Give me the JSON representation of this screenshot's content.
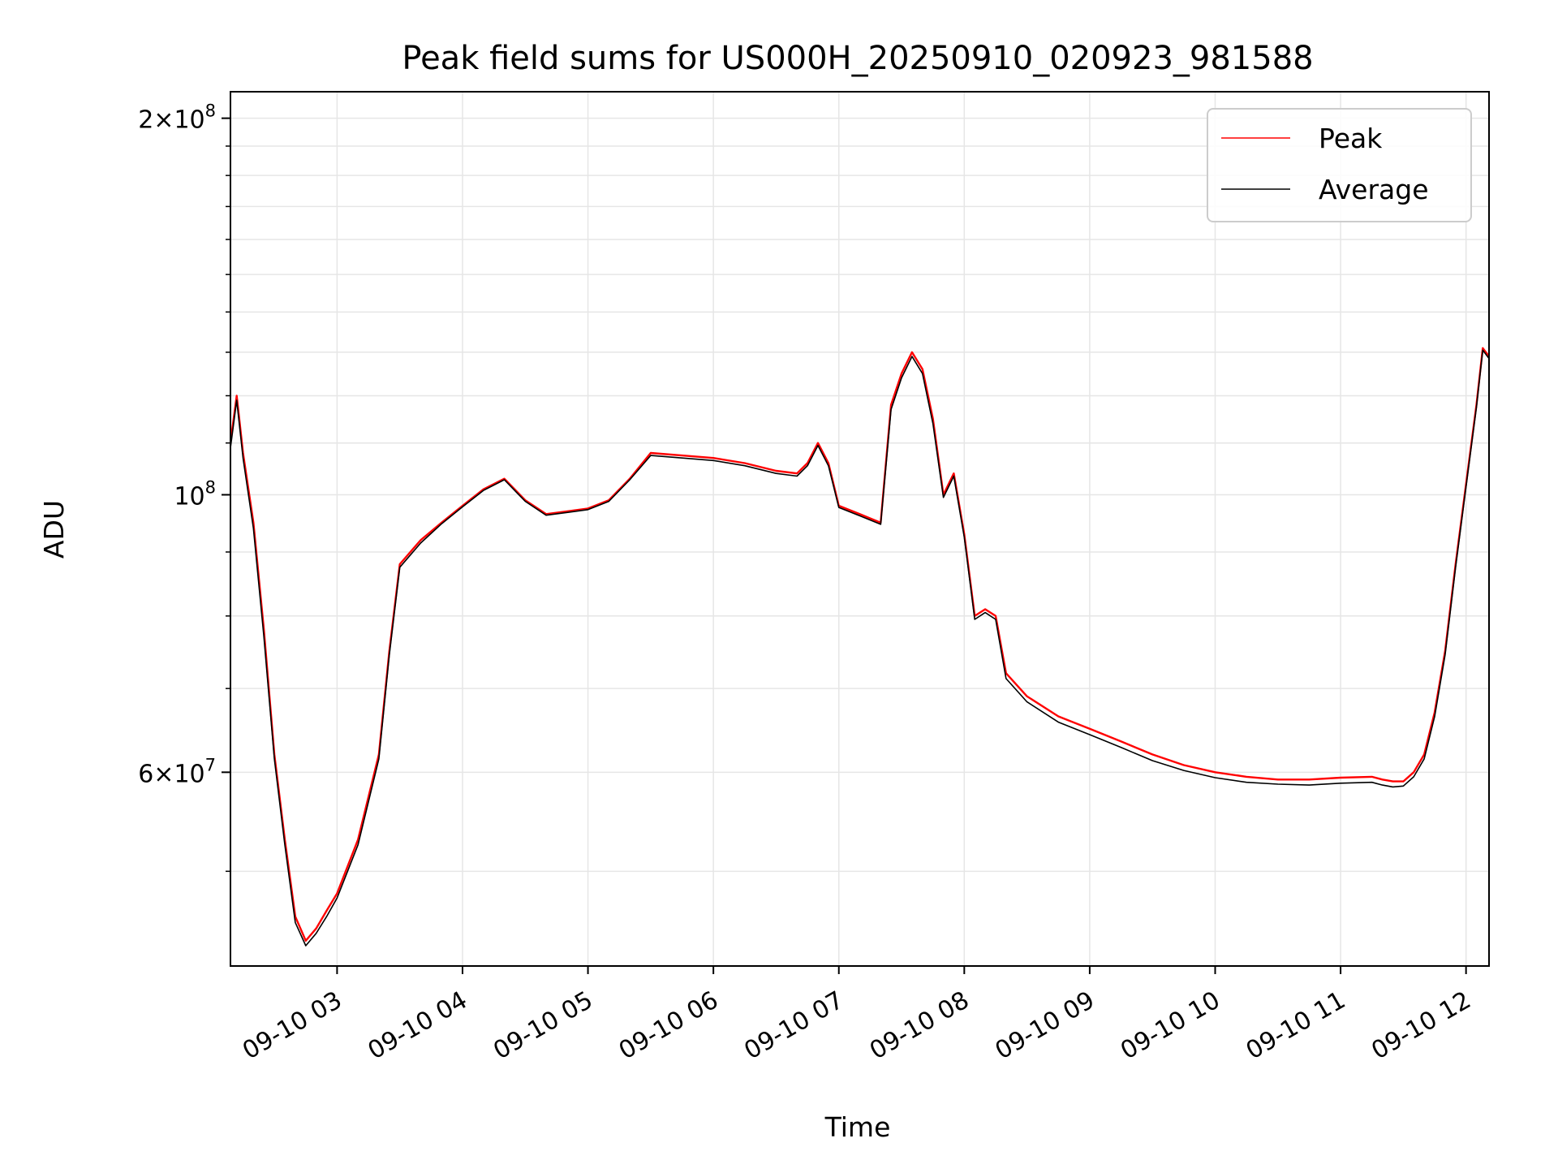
{
  "chart_data": {
    "type": "line",
    "title": "Peak field sums for US000H_20250910_020923_981588",
    "xlabel": "Time",
    "ylabel": "ADU",
    "yscale": "log",
    "xlim": [
      "2025-09-10 02:09",
      "2025-09-10 12:11"
    ],
    "ylim": [
      42000000,
      210000000
    ],
    "grid": true,
    "legend_position": "top-right",
    "x_ticks": [
      "09-10 03",
      "09-10 04",
      "09-10 05",
      "09-10 06",
      "09-10 07",
      "09-10 08",
      "09-10 09",
      "09-10 10",
      "09-10 11",
      "09-10 12"
    ],
    "y_ticks": [
      {
        "value": 60000000,
        "mantissa": "6",
        "exponent": "7"
      },
      {
        "value": 100000000,
        "mantissa": "",
        "exponent": "8"
      },
      {
        "value": 200000000,
        "mantissa": "2",
        "exponent": "8"
      }
    ],
    "x": [
      "02:09",
      "02:12",
      "02:15",
      "02:20",
      "02:25",
      "02:30",
      "02:35",
      "02:40",
      "02:45",
      "02:50",
      "02:55",
      "03:00",
      "03:10",
      "03:20",
      "03:25",
      "03:30",
      "03:40",
      "03:50",
      "04:00",
      "04:10",
      "04:20",
      "04:30",
      "04:40",
      "04:50",
      "05:00",
      "05:10",
      "05:20",
      "05:30",
      "05:45",
      "06:00",
      "06:15",
      "06:30",
      "06:40",
      "06:45",
      "06:50",
      "06:55",
      "07:00",
      "07:10",
      "07:20",
      "07:25",
      "07:30",
      "07:35",
      "07:40",
      "07:45",
      "07:50",
      "07:55",
      "08:00",
      "08:05",
      "08:10",
      "08:15",
      "08:20",
      "08:30",
      "08:45",
      "09:00",
      "09:15",
      "09:30",
      "09:45",
      "10:00",
      "10:15",
      "10:30",
      "10:45",
      "11:00",
      "11:15",
      "11:20",
      "11:25",
      "11:30",
      "11:35",
      "11:40",
      "11:45",
      "11:50",
      "11:55",
      "12:00",
      "12:05",
      "12:08",
      "12:11"
    ],
    "series": [
      {
        "name": "Peak",
        "color": "#ff0000",
        "values": [
          110000000,
          120000000,
          108000000,
          95000000,
          78000000,
          62000000,
          53000000,
          46000000,
          44000000,
          45000000,
          46500000,
          48000000,
          53000000,
          62000000,
          75000000,
          88000000,
          92000000,
          95000000,
          98000000,
          101000000,
          103000000,
          99000000,
          96500000,
          97000000,
          97500000,
          99000000,
          103000000,
          108000000,
          107500000,
          107000000,
          106000000,
          104500000,
          104000000,
          106000000,
          110000000,
          106000000,
          98000000,
          96500000,
          95000000,
          118000000,
          125000000,
          130000000,
          126000000,
          115000000,
          100000000,
          104000000,
          93000000,
          80000000,
          81000000,
          80000000,
          72000000,
          69000000,
          66500000,
          65000000,
          63500000,
          62000000,
          60800000,
          60000000,
          59500000,
          59200000,
          59200000,
          59400000,
          59500000,
          59200000,
          59000000,
          59000000,
          60000000,
          62000000,
          67000000,
          75000000,
          88000000,
          102000000,
          118000000,
          131000000,
          129000000
        ]
      },
      {
        "name": "Average",
        "color": "#000000",
        "values": [
          109000000,
          119000000,
          107000000,
          94000000,
          77000000,
          61500000,
          52500000,
          45500000,
          43600000,
          44600000,
          46000000,
          47600000,
          52500000,
          61500000,
          74500000,
          87500000,
          91500000,
          94800000,
          97800000,
          100800000,
          102800000,
          98800000,
          96300000,
          96800000,
          97300000,
          98800000,
          102800000,
          107500000,
          107000000,
          106500000,
          105500000,
          104000000,
          103500000,
          105500000,
          109500000,
          105500000,
          97700000,
          96200000,
          94700000,
          117000000,
          124000000,
          129000000,
          125000000,
          114000000,
          99500000,
          103500000,
          92500000,
          79500000,
          80500000,
          79500000,
          71300000,
          68300000,
          65800000,
          64300000,
          62800000,
          61300000,
          60200000,
          59400000,
          58900000,
          58700000,
          58600000,
          58800000,
          58900000,
          58600000,
          58400000,
          58500000,
          59500000,
          61500000,
          66500000,
          74500000,
          87500000,
          101500000,
          117500000,
          130500000,
          128500000
        ]
      }
    ]
  }
}
